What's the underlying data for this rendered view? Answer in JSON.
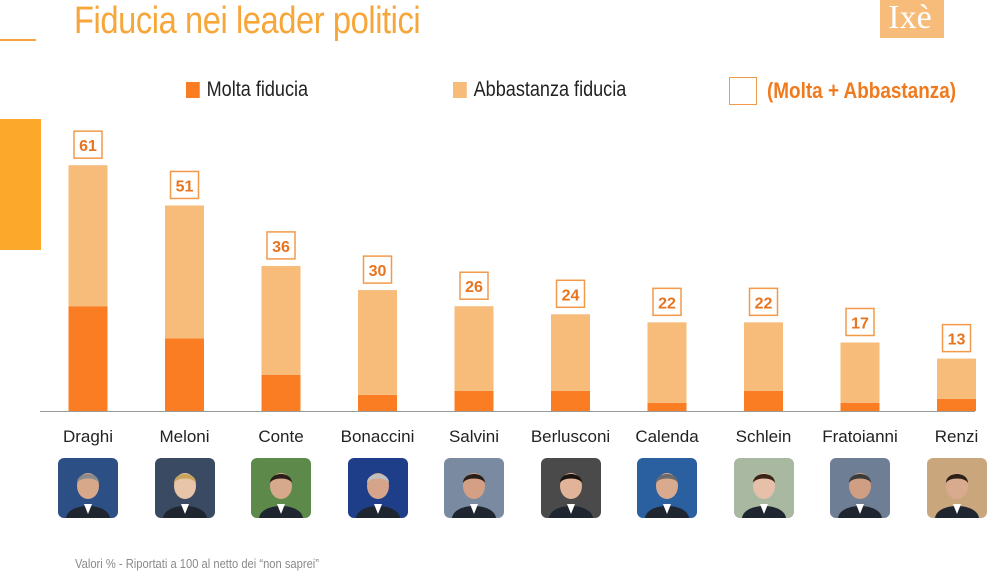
{
  "title": "Fiducia nei leader politici",
  "logo_text": "Ixè",
  "legend": {
    "molta": "Molta fiducia",
    "abbastanza": "Abbastanza fiducia",
    "total": "(Molta + Abbastanza)"
  },
  "colors": {
    "molta": "#fb7d23",
    "abbastanza": "#f7bb7a",
    "accent": "#f7a63a",
    "label_border": "#f39a4a",
    "label_text": "#e8741f",
    "side_bar": "#fba82b"
  },
  "footnote": "Valori % - Riportati a 100 al netto dei “non saprei”",
  "chart_data": {
    "type": "bar",
    "stacked": true,
    "categories": [
      "Draghi",
      "Meloni",
      "Conte",
      "Bonaccini",
      "Salvini",
      "Berlusconi",
      "Calenda",
      "Schlein",
      "Fratoianni",
      "Renzi"
    ],
    "series": [
      {
        "name": "Molta fiducia",
        "values": [
          26,
          18,
          9,
          4,
          5,
          5,
          2,
          5,
          2,
          3
        ]
      },
      {
        "name": "Abbastanza fiducia",
        "values": [
          35,
          33,
          27,
          26,
          21,
          19,
          20,
          17,
          15,
          10
        ]
      }
    ],
    "totals": [
      61,
      51,
      36,
      30,
      26,
      24,
      22,
      22,
      17,
      13
    ],
    "ylim": [
      0,
      65
    ],
    "grid": false,
    "legend_position": "top",
    "photo_icons": [
      "draghi-photo",
      "meloni-photo",
      "conte-photo",
      "bonaccini-photo",
      "salvini-photo",
      "berlusconi-photo",
      "calenda-photo",
      "schlein-photo",
      "fratoianni-photo",
      "renzi-photo"
    ]
  }
}
